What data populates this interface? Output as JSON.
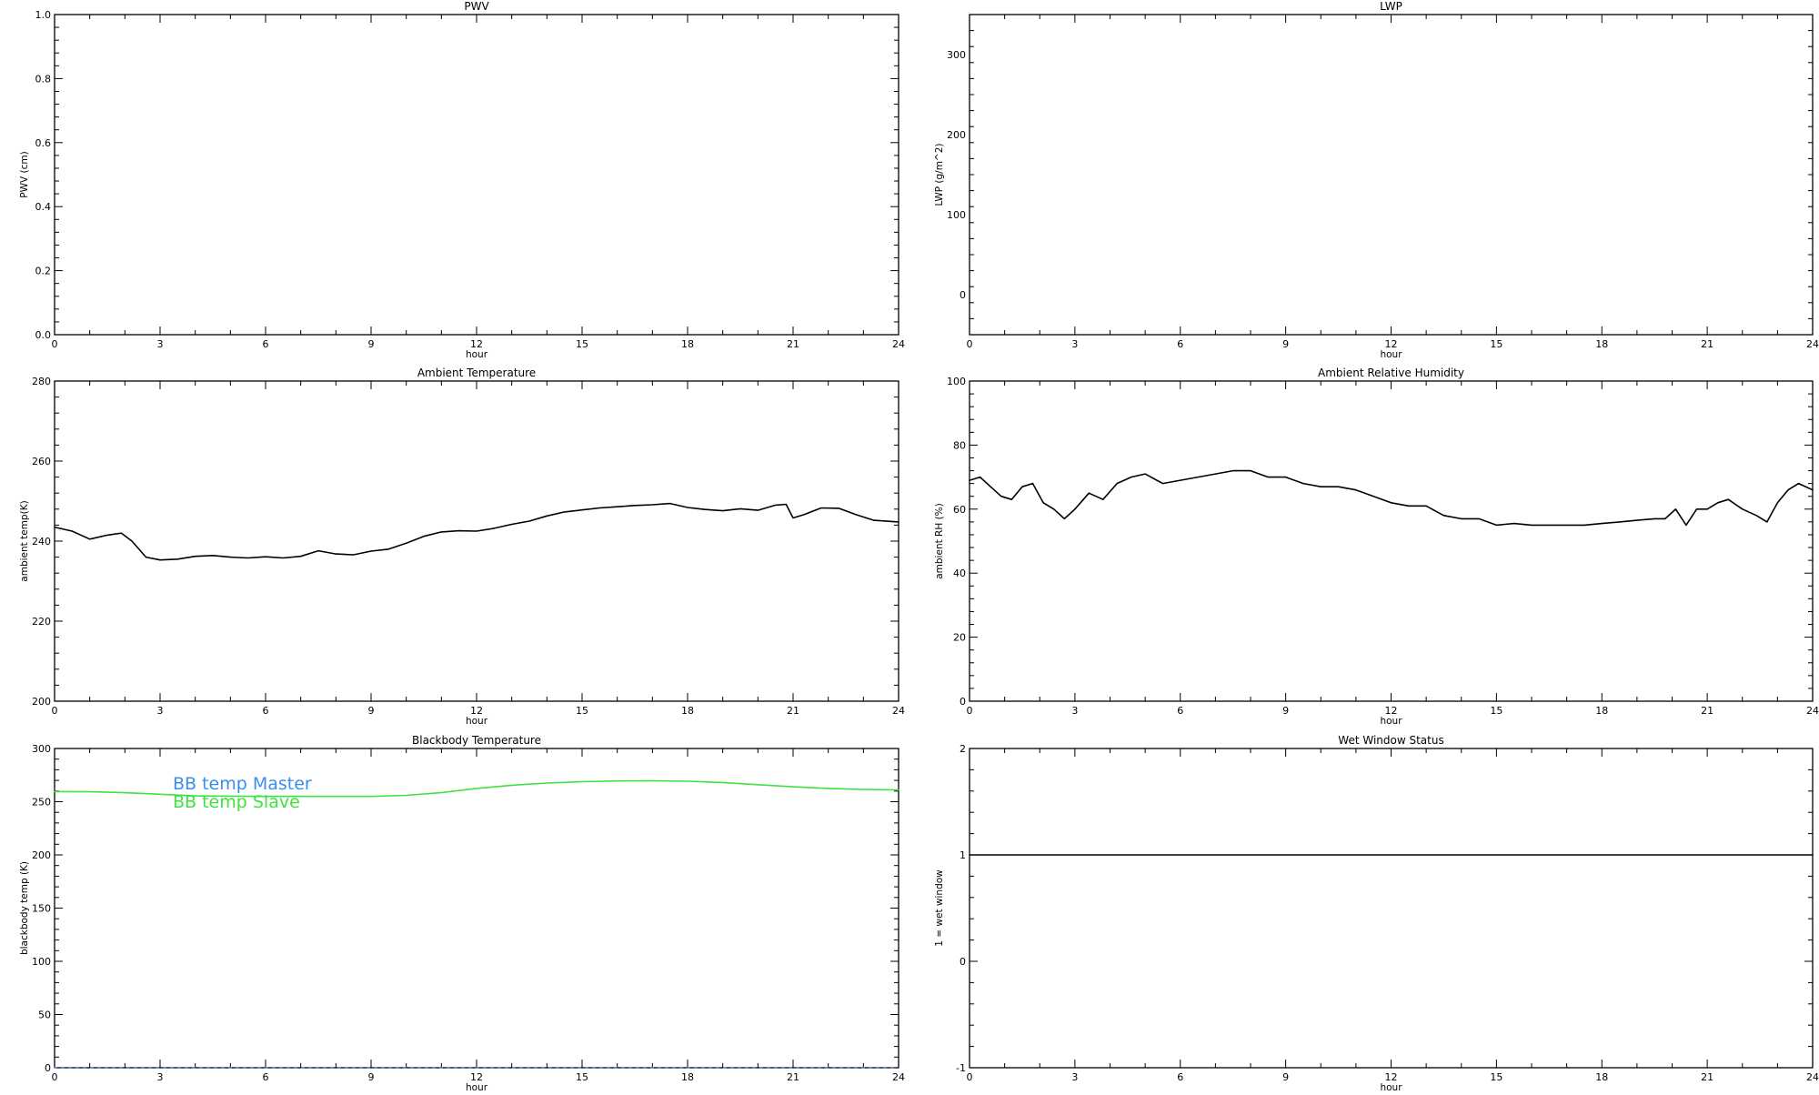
{
  "chart_data": [
    {
      "type": "line",
      "title": "PWV",
      "xlabel": "hour",
      "ylabel": "PWV (cm)",
      "xlim": [
        0,
        24
      ],
      "ylim": [
        0,
        1.0
      ],
      "xticks": [
        0,
        3,
        6,
        9,
        12,
        15,
        18,
        21,
        24
      ],
      "yticks": [
        "0.0",
        "0.2",
        "0.4",
        "0.6",
        "0.8",
        "1.0"
      ],
      "grid": false,
      "series": []
    },
    {
      "type": "line",
      "title": "LWP",
      "xlabel": "hour",
      "ylabel": "LWP (g/m^2)",
      "xlim": [
        0,
        24
      ],
      "ylim": [
        -50,
        350
      ],
      "xticks": [
        0,
        3,
        6,
        9,
        12,
        15,
        18,
        21,
        24
      ],
      "yticks": [
        "0",
        "100",
        "200",
        "300"
      ],
      "grid": false,
      "series": []
    },
    {
      "type": "line",
      "title": "Ambient Temperature",
      "xlabel": "hour",
      "ylabel": "ambient temp(K)",
      "xlim": [
        0,
        24
      ],
      "ylim": [
        200,
        280
      ],
      "xticks": [
        0,
        3,
        6,
        9,
        12,
        15,
        18,
        21,
        24
      ],
      "yticks": [
        "200",
        "220",
        "240",
        "260",
        "280"
      ],
      "grid": false,
      "series": [
        {
          "color": "#000000",
          "x": [
            0,
            0.5,
            1,
            1.5,
            1.9,
            2.2,
            2.6,
            3.0,
            3.5,
            4,
            4.5,
            5,
            5.5,
            6,
            6.5,
            7,
            7.5,
            8,
            8.5,
            9,
            9.5,
            10,
            10.5,
            11,
            11.5,
            12,
            12.5,
            13,
            13.5,
            14,
            14.5,
            15,
            15.5,
            16,
            16.5,
            17,
            17.5,
            18,
            18.5,
            19,
            19.5,
            20,
            20.5,
            20.8,
            21.0,
            21.3,
            21.8,
            22.3,
            22.8,
            23.3,
            24
          ],
          "values": [
            243.5,
            242.5,
            240.5,
            241.5,
            242,
            240,
            236,
            235.3,
            235.5,
            236.2,
            236.4,
            236,
            235.8,
            236.1,
            235.8,
            236.2,
            237.6,
            236.8,
            236.6,
            237.5,
            238.0,
            239.5,
            241.2,
            242.3,
            242.6,
            242.5,
            243.2,
            244.2,
            245.0,
            246.3,
            247.3,
            247.8,
            248.3,
            248.6,
            248.9,
            249.1,
            249.4,
            248.4,
            247.9,
            247.6,
            248.1,
            247.7,
            249.0,
            249.2,
            245.8,
            246.6,
            248.3,
            248.2,
            246.6,
            245.2,
            244.8
          ]
        }
      ]
    },
    {
      "type": "line",
      "title": "Ambient Relative Humidity",
      "xlabel": "hour",
      "ylabel": "ambient RH (%)",
      "xlim": [
        0,
        24
      ],
      "ylim": [
        0,
        100
      ],
      "xticks": [
        0,
        3,
        6,
        9,
        12,
        15,
        18,
        21,
        24
      ],
      "yticks": [
        "0",
        "20",
        "40",
        "60",
        "80",
        "100"
      ],
      "grid": false,
      "series": [
        {
          "color": "#000000",
          "x": [
            0,
            0.3,
            0.6,
            0.9,
            1.2,
            1.5,
            1.8,
            2.1,
            2.4,
            2.7,
            3.0,
            3.4,
            3.8,
            4.2,
            4.6,
            5.0,
            5.5,
            6.0,
            6.5,
            7.0,
            7.5,
            8.0,
            8.5,
            9.0,
            9.5,
            10.0,
            10.5,
            11.0,
            11.5,
            12.0,
            12.5,
            13.0,
            13.5,
            14.0,
            14.5,
            15.0,
            15.5,
            16.0,
            16.5,
            17.0,
            17.5,
            18.0,
            18.5,
            19.0,
            19.5,
            19.8,
            20.1,
            20.4,
            20.7,
            21.0,
            21.3,
            21.6,
            22.0,
            22.4,
            22.7,
            23.0,
            23.3,
            23.6,
            24.0
          ],
          "values": [
            69,
            70,
            67,
            64,
            63,
            67,
            68,
            62,
            60,
            57,
            60,
            65,
            63,
            68,
            70,
            71,
            68,
            69,
            70,
            71,
            72,
            72,
            70,
            70,
            68,
            67,
            67,
            66,
            64,
            62,
            61,
            61,
            58,
            57,
            57,
            55,
            55.5,
            55,
            55,
            55,
            55,
            55.5,
            56,
            56.5,
            57,
            57,
            60,
            55,
            60,
            60,
            62,
            63,
            60,
            58,
            56,
            62,
            66,
            68,
            66
          ]
        }
      ]
    },
    {
      "type": "line",
      "title": "Blackbody Temperature",
      "xlabel": "hour",
      "ylabel": "blackbody temp (K)",
      "xlim": [
        0,
        24
      ],
      "ylim": [
        0,
        300
      ],
      "xticks": [
        0,
        3,
        6,
        9,
        12,
        15,
        18,
        21,
        24
      ],
      "yticks": [
        "0",
        "50",
        "100",
        "150",
        "200",
        "250",
        "300"
      ],
      "grid": false,
      "legend": "top-left",
      "series": [
        {
          "name": "BB temp Master",
          "color": "#3a8ee8",
          "x": [
            0,
            3,
            6,
            9,
            12,
            15,
            18,
            21,
            24
          ],
          "values": [
            0,
            0,
            0,
            0,
            0,
            0,
            0,
            0,
            0
          ]
        },
        {
          "name": "BB temp Slave",
          "color": "#3fe23f",
          "x": [
            0,
            1,
            2,
            3,
            4,
            5,
            6,
            7,
            8,
            9,
            10,
            11,
            12,
            13,
            14,
            15,
            16,
            17,
            18,
            19,
            20,
            21,
            22,
            23,
            24
          ],
          "values": [
            259.5,
            259.3,
            258.5,
            257,
            255.5,
            255.2,
            255,
            255,
            255,
            255,
            256,
            258.5,
            262.5,
            265.5,
            267.5,
            268.8,
            269.5,
            269.6,
            269.2,
            268,
            266,
            264,
            262.5,
            261.5,
            261
          ]
        }
      ]
    },
    {
      "type": "line",
      "title": "Wet Window Status",
      "xlabel": "hour",
      "ylabel": "1 = wet window",
      "xlim": [
        0,
        24
      ],
      "ylim": [
        -1,
        2
      ],
      "xticks": [
        0,
        3,
        6,
        9,
        12,
        15,
        18,
        21,
        24
      ],
      "yticks": [
        "-1",
        "0",
        "1",
        "2"
      ],
      "grid": false,
      "series": [
        {
          "color": "#000000",
          "x": [
            0,
            24
          ],
          "values": [
            1,
            1
          ]
        }
      ]
    }
  ]
}
